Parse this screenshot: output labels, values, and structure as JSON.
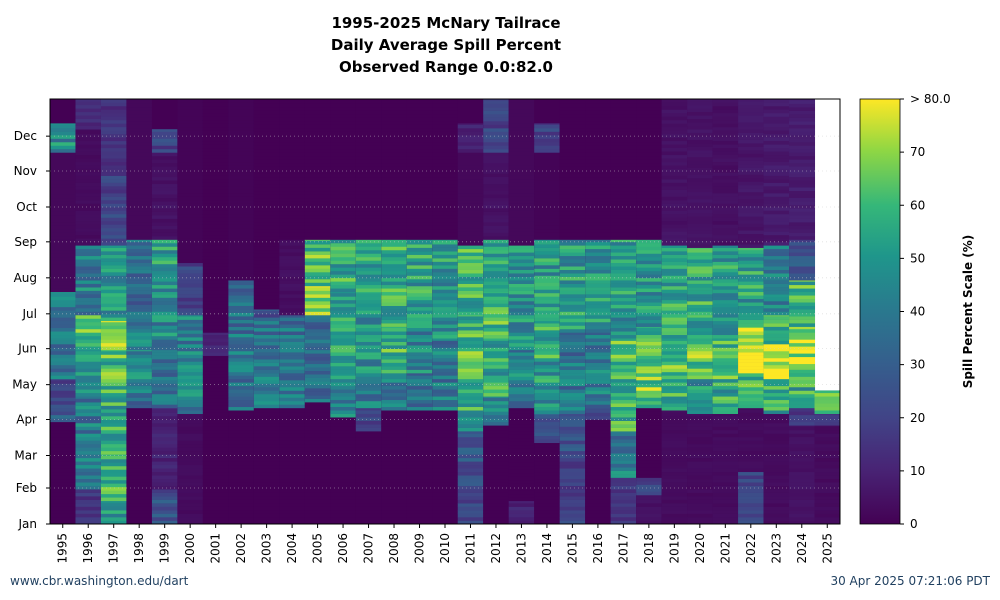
{
  "chart_data": {
    "type": "heatmap",
    "title": "1995-2025 McNary Tailrace",
    "subtitle": "Daily Average Spill Percent",
    "range_text": "Observed Range 0.0:82.0",
    "x_categories": [
      "1995",
      "1996",
      "1997",
      "1998",
      "1999",
      "2000",
      "2001",
      "2002",
      "2003",
      "2004",
      "2005",
      "2006",
      "2007",
      "2008",
      "2009",
      "2010",
      "2011",
      "2012",
      "2013",
      "2014",
      "2015",
      "2016",
      "2017",
      "2018",
      "2019",
      "2020",
      "2021",
      "2022",
      "2023",
      "2024",
      "2025"
    ],
    "y_month_labels": [
      "Jan",
      "Feb",
      "Mar",
      "Apr",
      "May",
      "Jun",
      "Jul",
      "Aug",
      "Sep",
      "Oct",
      "Nov",
      "Dec"
    ],
    "y_range_days": [
      0,
      366
    ],
    "colorbar": {
      "label": "Spill Percent Scale (%)",
      "min": 0,
      "max": 80,
      "ticks": [
        0,
        10,
        20,
        30,
        40,
        50,
        60,
        70
      ],
      "top_label": "> 80.0",
      "colormap": "viridis"
    },
    "grid": "dotted horizontal at month boundaries",
    "approx_spill_segments_by_year": {
      "1995": [
        [
          0,
          88,
          0
        ],
        [
          88,
          94,
          30
        ],
        [
          94,
          125,
          20
        ],
        [
          125,
          160,
          38
        ],
        [
          160,
          200,
          42
        ],
        [
          200,
          320,
          2
        ],
        [
          320,
          345,
          45
        ]
      ],
      "1996": [
        [
          0,
          30,
          15
        ],
        [
          30,
          60,
          45
        ],
        [
          60,
          110,
          40
        ],
        [
          110,
          150,
          48
        ],
        [
          150,
          180,
          60
        ],
        [
          180,
          240,
          42
        ],
        [
          240,
          340,
          3
        ],
        [
          340,
          366,
          12
        ]
      ],
      "1997": [
        [
          0,
          20,
          50
        ],
        [
          20,
          60,
          58
        ],
        [
          60,
          110,
          55
        ],
        [
          110,
          150,
          60
        ],
        [
          150,
          175,
          68
        ],
        [
          175,
          240,
          50
        ],
        [
          240,
          300,
          20
        ],
        [
          300,
          366,
          15
        ]
      ],
      "1998": [
        [
          0,
          100,
          0
        ],
        [
          100,
          110,
          30
        ],
        [
          110,
          150,
          45
        ],
        [
          150,
          180,
          45
        ],
        [
          180,
          245,
          35
        ],
        [
          245,
          366,
          2
        ]
      ],
      "1999": [
        [
          0,
          30,
          25
        ],
        [
          30,
          100,
          10
        ],
        [
          100,
          150,
          40
        ],
        [
          150,
          200,
          45
        ],
        [
          200,
          245,
          50
        ],
        [
          245,
          320,
          5
        ],
        [
          320,
          340,
          20
        ]
      ],
      "2000": [
        [
          0,
          95,
          3
        ],
        [
          95,
          180,
          42
        ],
        [
          180,
          225,
          20
        ],
        [
          225,
          366,
          1
        ]
      ],
      "2001": [
        [
          0,
          145,
          0
        ],
        [
          145,
          165,
          12
        ],
        [
          165,
          366,
          0
        ]
      ],
      "2002": [
        [
          0,
          98,
          0
        ],
        [
          98,
          200,
          38
        ],
        [
          200,
          210,
          30
        ],
        [
          210,
          366,
          1
        ]
      ],
      "2003": [
        [
          0,
          100,
          0
        ],
        [
          100,
          175,
          40
        ],
        [
          175,
          185,
          25
        ],
        [
          185,
          366,
          0
        ]
      ],
      "2004": [
        [
          0,
          100,
          0
        ],
        [
          100,
          180,
          38
        ],
        [
          180,
          245,
          4
        ],
        [
          245,
          366,
          0
        ]
      ],
      "2005": [
        [
          0,
          105,
          0
        ],
        [
          105,
          180,
          35
        ],
        [
          180,
          205,
          70
        ],
        [
          205,
          245,
          62
        ],
        [
          245,
          366,
          0
        ]
      ],
      "2006": [
        [
          0,
          92,
          0
        ],
        [
          92,
          130,
          45
        ],
        [
          130,
          200,
          50
        ],
        [
          200,
          245,
          55
        ],
        [
          245,
          366,
          0
        ]
      ],
      "2007": [
        [
          0,
          80,
          0
        ],
        [
          80,
          100,
          20
        ],
        [
          100,
          130,
          40
        ],
        [
          130,
          200,
          48
        ],
        [
          200,
          245,
          55
        ],
        [
          245,
          366,
          0
        ]
      ],
      "2008": [
        [
          0,
          98,
          0
        ],
        [
          98,
          130,
          40
        ],
        [
          130,
          170,
          58
        ],
        [
          170,
          245,
          55
        ],
        [
          245,
          366,
          0
        ]
      ],
      "2009": [
        [
          0,
          98,
          0
        ],
        [
          98,
          130,
          40
        ],
        [
          130,
          175,
          45
        ],
        [
          175,
          245,
          52
        ],
        [
          245,
          366,
          0
        ]
      ],
      "2010": [
        [
          0,
          98,
          0
        ],
        [
          98,
          160,
          40
        ],
        [
          160,
          245,
          50
        ],
        [
          245,
          366,
          0
        ]
      ],
      "2011": [
        [
          0,
          30,
          20
        ],
        [
          30,
          80,
          25
        ],
        [
          80,
          110,
          55
        ],
        [
          110,
          180,
          60
        ],
        [
          180,
          240,
          58
        ],
        [
          240,
          320,
          2
        ],
        [
          320,
          345,
          10
        ]
      ],
      "2012": [
        [
          0,
          85,
          0
        ],
        [
          85,
          110,
          45
        ],
        [
          110,
          160,
          55
        ],
        [
          160,
          200,
          62
        ],
        [
          200,
          245,
          55
        ],
        [
          245,
          320,
          5
        ],
        [
          320,
          366,
          20
        ]
      ],
      "2013": [
        [
          0,
          20,
          10
        ],
        [
          20,
          100,
          0
        ],
        [
          100,
          150,
          42
        ],
        [
          150,
          240,
          48
        ],
        [
          240,
          366,
          2
        ]
      ],
      "2014": [
        [
          0,
          70,
          0
        ],
        [
          70,
          95,
          25
        ],
        [
          95,
          140,
          50
        ],
        [
          140,
          175,
          55
        ],
        [
          175,
          245,
          50
        ],
        [
          245,
          320,
          1
        ],
        [
          320,
          345,
          20
        ]
      ],
      "2015": [
        [
          0,
          60,
          20
        ],
        [
          60,
          95,
          25
        ],
        [
          95,
          130,
          38
        ],
        [
          130,
          165,
          38
        ],
        [
          165,
          245,
          50
        ],
        [
          245,
          366,
          0
        ]
      ],
      "2016": [
        [
          0,
          90,
          0
        ],
        [
          90,
          100,
          25
        ],
        [
          100,
          165,
          40
        ],
        [
          165,
          245,
          50
        ],
        [
          245,
          366,
          0
        ]
      ],
      "2017": [
        [
          0,
          40,
          15
        ],
        [
          40,
          80,
          40
        ],
        [
          80,
          110,
          58
        ],
        [
          110,
          160,
          60
        ],
        [
          160,
          180,
          45
        ],
        [
          180,
          245,
          50
        ],
        [
          245,
          366,
          0
        ]
      ],
      "2018": [
        [
          0,
          25,
          5
        ],
        [
          25,
          40,
          20
        ],
        [
          40,
          100,
          0
        ],
        [
          100,
          130,
          65
        ],
        [
          130,
          170,
          62
        ],
        [
          170,
          245,
          50
        ],
        [
          245,
          366,
          0
        ]
      ],
      "2019": [
        [
          0,
          98,
          3
        ],
        [
          98,
          125,
          55
        ],
        [
          125,
          160,
          62
        ],
        [
          160,
          240,
          55
        ],
        [
          240,
          366,
          5
        ]
      ],
      "2020": [
        [
          0,
          95,
          3
        ],
        [
          95,
          125,
          50
        ],
        [
          125,
          160,
          66
        ],
        [
          160,
          180,
          55
        ],
        [
          180,
          238,
          55
        ],
        [
          238,
          366,
          5
        ]
      ],
      "2021": [
        [
          0,
          95,
          3
        ],
        [
          95,
          125,
          55
        ],
        [
          125,
          160,
          60
        ],
        [
          160,
          240,
          52
        ],
        [
          240,
          366,
          4
        ]
      ],
      "2022": [
        [
          0,
          45,
          20
        ],
        [
          45,
          100,
          3
        ],
        [
          100,
          130,
          60
        ],
        [
          130,
          170,
          75
        ],
        [
          170,
          238,
          52
        ],
        [
          238,
          366,
          6
        ]
      ],
      "2023": [
        [
          0,
          95,
          3
        ],
        [
          95,
          125,
          55
        ],
        [
          125,
          155,
          80
        ],
        [
          155,
          180,
          60
        ],
        [
          180,
          240,
          40
        ],
        [
          240,
          366,
          7
        ]
      ],
      "2024": [
        [
          0,
          85,
          5
        ],
        [
          85,
          100,
          15
        ],
        [
          100,
          135,
          55
        ],
        [
          135,
          170,
          70
        ],
        [
          170,
          210,
          58
        ],
        [
          210,
          245,
          25
        ],
        [
          245,
          366,
          8
        ]
      ],
      "2025": [
        [
          0,
          85,
          3
        ],
        [
          85,
          95,
          20
        ],
        [
          95,
          115,
          70
        ]
      ]
    }
  },
  "footer": {
    "source": "www.cbr.washington.edu/dart",
    "timestamp": "30 Apr 2025 07:21:06 PDT"
  }
}
